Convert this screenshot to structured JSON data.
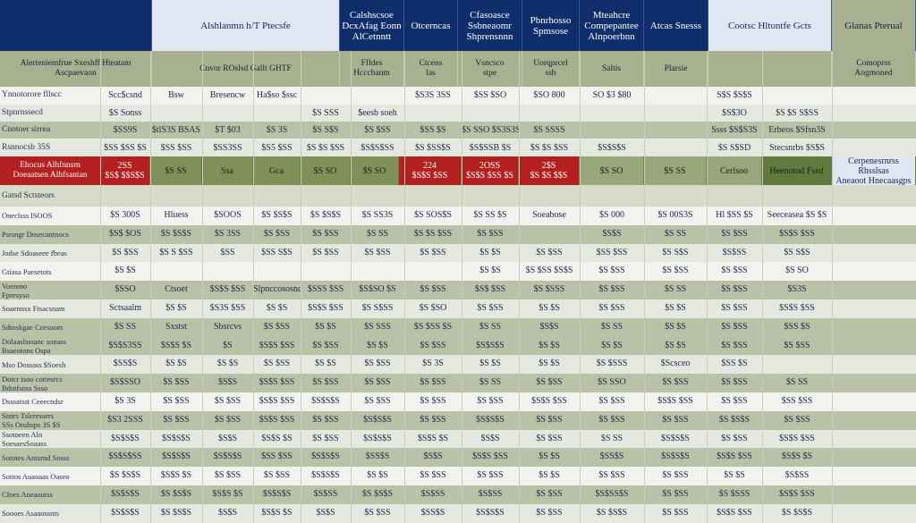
{
  "top_header": {
    "cells": [
      {
        "text": "",
        "style": "navy"
      },
      {
        "text": "Alshlanmn h/T Ptecsfe",
        "style": "lightblue"
      },
      {
        "text": "Calshscsoe\nDcxAfag Eonn\nAlCetnntt",
        "style": "navy"
      },
      {
        "text": "Otcerncas",
        "style": "navy"
      },
      {
        "text": "Cfasoasce\nSsbneaomr\nShprensnnn",
        "style": "navy"
      },
      {
        "text": "Pbnrhosso\nSpmsose",
        "style": "navy"
      },
      {
        "text": "Mteahcre\nCompepantee\nAlnpoerbnn",
        "style": "navy"
      },
      {
        "text": "Atcas Snesss",
        "style": "navy"
      },
      {
        "text": "Cootsc Hltontfe Gcts",
        "style": "lightblue"
      },
      {
        "text": "Glanas Pterual",
        "style": "sage"
      }
    ]
  },
  "second_header": {
    "cells": [
      "Alerteniemfrue Sxeshff Hteatam\nAscpaevaon",
      "Cnvor ROslsd Gallt GHTF",
      "Ffldes\nHcccbanm",
      "Ctcens\nlas",
      "Vsncsco\nstpe",
      "Uorqprcel\nssb",
      "Saltis",
      "Plarsie",
      "",
      "Comoprss\nAogmoned"
    ]
  },
  "top_rows": [
    {
      "label": "Ynnotorore fllscc",
      "cells": [
        "Scc$csnd",
        "Bsw",
        "Bresencw",
        "Ha$so $ssc",
        "",
        "",
        "$S3S 3SS",
        "$SS $SO",
        "$SO 800",
        "SO $3 $80",
        "",
        "S$S $S$S",
        ""
      ]
    },
    {
      "label": "Stpnrnssecd",
      "cells": [
        "$S Sonss",
        "",
        "",
        "",
        "$S SSS",
        "$eesb soeh",
        "",
        "",
        "",
        "",
        "",
        "$S$3O",
        "$S $S S$SS"
      ]
    },
    {
      "label": "Cnotoer sirrea",
      "cells": [
        "$SS9S",
        "$tlS3S\nBSAS",
        "$T $03",
        "$S 3S",
        "$S S$S",
        "$S $SS",
        "$SS $S",
        "$S SSO\n$S3S3S",
        "$S SSSS",
        "",
        "",
        "Ssss $S$S3S",
        "Erbeos\n$Sfsn3S"
      ]
    },
    {
      "label": "Rsnnocsb 35S",
      "cells": [
        "$SS $SS $S",
        "$SS $SS",
        "$SS3SS",
        "$S5 $SS",
        "$S $S $SS",
        "$S$S$SS",
        "$S $SS$S",
        "$S$SSB $S",
        "$S $S $SS",
        "$S$S$S",
        "",
        "$S S$SD",
        "Stecsnrbs $S$S"
      ]
    }
  ],
  "highlight_row": {
    "label": "Ehocus Alhfnnsm\nDoeaatsen Alhfsantan",
    "key_cells": [
      {
        "text": "2SS\n$S$ $$S$S",
        "style": "hl"
      },
      {
        "text": "$S SS",
        "style": "olive"
      },
      {
        "text": "Ssa",
        "style": "olive"
      },
      {
        "text": "Gca",
        "style": "olive"
      },
      {
        "text": "$S SO",
        "style": "olive"
      },
      {
        "text": "$S SO",
        "style": "olive"
      },
      {
        "text": "224\n$S$S $SS",
        "style": "hl"
      },
      {
        "text": "2OSS\n$S$S $SS $S",
        "style": "hl"
      },
      {
        "text": "2$S\n$S $S $$S",
        "style": "hl"
      },
      {
        "text": "$S SO",
        "style": "olive2"
      },
      {
        "text": "$S SS",
        "style": "olive2"
      },
      {
        "text": "Cerlsoo",
        "style": "olive2"
      },
      {
        "text": "Heenotod Fsed",
        "style": "darkolive"
      },
      {
        "text": "Cerpenesrnrss Rhsslsas\nAneaoot Hnecaasgps",
        "style": "lightblue"
      }
    ]
  },
  "subheader_row": {
    "label": "Gatsd Sctsteors"
  },
  "body_rows": [
    {
      "label": "Oneclsss lSOOS",
      "style": "light",
      "cells": [
        "$S 300S",
        "Hluess",
        "$SOOS",
        "$S $S$S",
        "$S $S$S",
        "$S SS3S",
        "$S SOS$S",
        "$S SS $S",
        "Soeabose",
        "$S 000",
        "$S 00S3S",
        "Hl $SS $S",
        "Seeceasea $S $S"
      ]
    },
    {
      "label": "Psrsngr Dnsecantnocs",
      "style": "alt",
      "cells": [
        "$S$ $OS",
        "$S $S$S",
        "$S 3SS",
        "$S $SS",
        "$S $SS",
        "$S SS",
        "$S $S $SS",
        "$S $SS",
        "",
        "$S$S",
        "$S SS",
        "$S $SS",
        "$S$S $SS"
      ]
    },
    {
      "label": "Jodse Sdoaseee fbeas",
      "style": "plain",
      "cells": [
        "$S $SS",
        "$S S $SS",
        "$SS",
        "$SS S$S",
        "$S $SS",
        "$S $SS",
        "$S $SS",
        "$S $S",
        "$S $SS",
        "$SS $SS",
        "$S S$S",
        "$S$SS",
        "$S S$S"
      ]
    },
    {
      "label": "Gtiasa Paesetots",
      "style": "light",
      "cells": [
        "$S $S",
        "",
        "",
        "",
        "",
        "",
        "",
        "$S $S",
        "$S $SS $S$S",
        "$S $SS",
        "$S $SS",
        "$S $SS",
        "$S SO"
      ]
    },
    {
      "label": "Voereno\nFpresyso",
      "style": "alt",
      "cells": [
        "$SSO",
        "Ctsoet",
        "$S$S $SS",
        "Slpnccososncs",
        "$SSS $SS",
        "$S$SO $S",
        "$S $SS",
        "$S$ $SS",
        "$S $SSS",
        "$S $SS",
        "$S SS",
        "$S $SS",
        "$S3S"
      ]
    },
    {
      "label": "Soaennsx Ftsacsnam",
      "style": "plain",
      "cells": [
        "Sctsaalm",
        "$S $S",
        "$S3S $SS",
        "$S $S",
        "$S$S $SS",
        "$S S$SS",
        "$S $SO",
        "$S $SS",
        "$S $S",
        "$S $SS",
        "$S $S",
        "$S $SS",
        "$S$S $SS"
      ]
    },
    {
      "label": "Sdtoskgae Corsoom",
      "style": "alt",
      "cells": [
        "$S SS",
        "Sxstst",
        "Sbsrcvs",
        "$S $SS",
        "$S $S",
        "$S SSS",
        "$S $SS $S",
        "$S SS",
        "$S$S",
        "$S SS",
        "$S $S",
        "$S $SS",
        "$SS $S"
      ]
    },
    {
      "label": "Dolaaslsssanc sonass\nBsaeotons Ospa",
      "style": "alt",
      "cells": [
        "$S$S3SS",
        "$S$S $S",
        "$S",
        "$S$S $SS",
        "$S $SS",
        "$S $S",
        "$S $SS",
        "$S$S$S",
        "$S $S",
        "$S $S",
        "$S $S",
        "$S $SS",
        "$S $SS"
      ]
    },
    {
      "label": "Mso Dossass $Soesh",
      "style": "plain",
      "cells": [
        "$SS$S",
        "$S $S",
        "$S $S",
        "$S $SS",
        "$S $S",
        "$S $SS",
        "$S 3S",
        "$S $S",
        "$S $S",
        "$S $SSS",
        "$Scsceo",
        "$SS $S",
        ""
      ]
    },
    {
      "label": "Dotcr tsoo cottesrcs\nBdutfsoss Ssso",
      "style": "alt",
      "cells": [
        "$S$SSO",
        "$S $SS",
        "$S$S",
        "$S$S $SS",
        "$S $SS",
        "$S $SS",
        "$S $SS",
        "$S SS",
        "$S $SS",
        "$S SSO",
        "$S $SS",
        "$S $SS",
        "$S SS"
      ]
    },
    {
      "label": "Dsssatsst Ceeecndsr",
      "style": "light",
      "cells": [
        "$S 3S",
        "$S $SS",
        "$S $SS",
        "$S$S $SS",
        "$S$S$S",
        "$S $SS",
        "$S $SS",
        "$S $SS",
        "$S$S $SS",
        "$S $SS",
        "$S$S $SS",
        "$S $SS",
        "$SS $SS"
      ]
    },
    {
      "label": "Sistrs Tsleressers\nSSs Oruhsps 3S $S",
      "style": "alt",
      "cells": [
        "$S3 2SSS",
        "$S $SS",
        "$S $SS",
        "$S$S $SS",
        "$S $SS",
        "$S$S$S",
        "$S $SS",
        "$S$S$S",
        "$S $SS",
        "$S $SS",
        "$S $SS",
        "$S $S$S",
        "$S $SS"
      ]
    },
    {
      "label": "Ssotoeen Aln\nSoesaesSoaass",
      "style": "plain",
      "cells": [
        "$S$S$S",
        "$S$S$S",
        "$S$S",
        "$S$S $S",
        "$S $SS",
        "$S$S$S",
        "$S$S $S",
        "$S$S",
        "$S $SS",
        "$S SS",
        "$S$S$S",
        "$S $SS",
        "$S$S $SS"
      ]
    },
    {
      "label": "Sototes Antarnd Sosss",
      "style": "alt",
      "cells": [
        "$S$S$SS",
        "$S$S$S",
        "$S$S$S",
        "$SS $SS",
        "$S$S$S",
        "$SS$S",
        "$S$S",
        "$S$S $SS",
        "$S $S",
        "$SS$S",
        "$S$S$S",
        "$S$S $SS",
        "$S$S $S"
      ]
    },
    {
      "label": "Sottos Auaoaas Oaseo",
      "style": "light",
      "cells": [
        "$S $S$S",
        "$S$S $S",
        "$S $SS",
        "$S $SS",
        "$S$S$S",
        "$S $S",
        "$S $SS",
        "$S $SS",
        "$S $S",
        "$S $SS",
        "$S $SS",
        "$S $S",
        "$S$SS"
      ]
    },
    {
      "label": "Cfoes Aneaoutss",
      "style": "alt",
      "cells": [
        "$S$S$S",
        "$S $S$S",
        "$S$S $S",
        "$S$S$S",
        "$S$SS",
        "$S $S$S",
        "$S$SS",
        "$S$SS",
        "$S $SS",
        "$S$SS$S",
        "$S $SS",
        "$S $SSS",
        "$S$S $SS"
      ]
    },
    {
      "label": "Soooes Asaaossnts",
      "style": "plain",
      "cells": [
        "$S$S$S",
        "$S $S$S",
        "$S$S",
        "$S$S $S",
        "$S$S",
        "$S $SS",
        "$SS$S",
        "$S$S$S",
        "$S $SS",
        "$S $S$S",
        "$S $SS",
        "$S$S $SS",
        "$S $S$S"
      ]
    }
  ]
}
